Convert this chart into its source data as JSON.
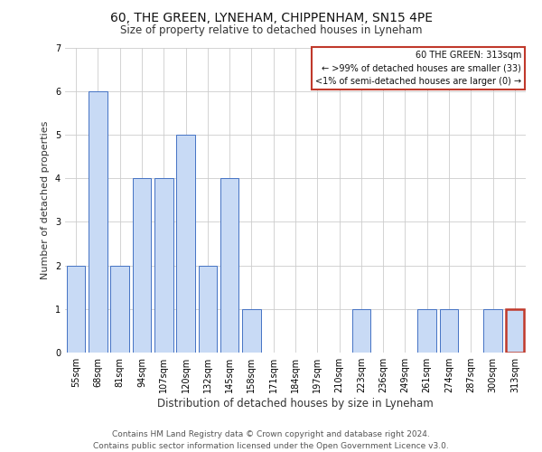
{
  "title": "60, THE GREEN, LYNEHAM, CHIPPENHAM, SN15 4PE",
  "subtitle": "Size of property relative to detached houses in Lyneham",
  "xlabel": "Distribution of detached houses by size in Lyneham",
  "ylabel": "Number of detached properties",
  "footer_line1": "Contains HM Land Registry data © Crown copyright and database right 2024.",
  "footer_line2": "Contains public sector information licensed under the Open Government Licence v3.0.",
  "categories": [
    "55sqm",
    "68sqm",
    "81sqm",
    "94sqm",
    "107sqm",
    "120sqm",
    "132sqm",
    "145sqm",
    "158sqm",
    "171sqm",
    "184sqm",
    "197sqm",
    "210sqm",
    "223sqm",
    "236sqm",
    "249sqm",
    "261sqm",
    "274sqm",
    "287sqm",
    "300sqm",
    "313sqm"
  ],
  "values": [
    2,
    6,
    2,
    4,
    4,
    5,
    2,
    4,
    1,
    0,
    0,
    0,
    0,
    1,
    0,
    0,
    1,
    1,
    0,
    1,
    1
  ],
  "highlight_index": 20,
  "bar_color": "#c8daf5",
  "bar_edge_color": "#4472c4",
  "highlight_bar_edge_color": "#c0392b",
  "annotation_box_color": "#c0392b",
  "annotation_text": "60 THE GREEN: 313sqm\n← >99% of detached houses are smaller (33)\n<1% of semi-detached houses are larger (0) →",
  "annotation_fontsize": 7.0,
  "ylim": [
    0,
    7
  ],
  "yticks": [
    0,
    1,
    2,
    3,
    4,
    5,
    6,
    7
  ],
  "grid_color": "#cccccc",
  "background_color": "#ffffff",
  "title_fontsize": 10,
  "subtitle_fontsize": 8.5,
  "xlabel_fontsize": 8.5,
  "ylabel_fontsize": 8,
  "tick_fontsize": 7,
  "footer_fontsize": 6.5
}
